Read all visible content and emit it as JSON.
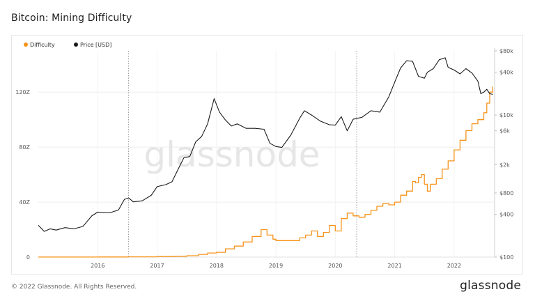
{
  "page": {
    "title": "Bitcoin: Mining Difficulty",
    "footer": "© 2022 Glassnode. All Rights Reserved.",
    "brand": "glassnode",
    "watermark": "glassnode"
  },
  "chart_data": {
    "type": "line",
    "title": "Bitcoin: Mining Difficulty",
    "xlabel": "",
    "ylabel_left": "",
    "ylabel_right": "",
    "legend_position": "top-left",
    "grid": true,
    "x_range": [
      2015.0,
      2022.67
    ],
    "x_ticks": [
      {
        "value": 2016,
        "label": "2016"
      },
      {
        "value": 2017,
        "label": "2017"
      },
      {
        "value": 2018,
        "label": "2018"
      },
      {
        "value": 2019,
        "label": "2019"
      },
      {
        "value": 2020,
        "label": "2020"
      },
      {
        "value": 2021,
        "label": "2021"
      },
      {
        "value": 2022,
        "label": "2022"
      }
    ],
    "left_axis": {
      "scale": "linear",
      "range": [
        0,
        150
      ],
      "ticks": [
        {
          "value": 0,
          "label": "0"
        },
        {
          "value": 40,
          "label": "40Z"
        },
        {
          "value": 80,
          "label": "80Z"
        },
        {
          "value": 120,
          "label": "120Z"
        }
      ]
    },
    "right_axis": {
      "scale": "log",
      "range": [
        100,
        80000
      ],
      "ticks": [
        {
          "value": 100,
          "label": "$100"
        },
        {
          "value": 400,
          "label": "$400"
        },
        {
          "value": 800,
          "label": "$800"
        },
        {
          "value": 2000,
          "label": "$2k"
        },
        {
          "value": 6000,
          "label": "$6k"
        },
        {
          "value": 10000,
          "label": "$10k"
        },
        {
          "value": 40000,
          "label": "$40k"
        },
        {
          "value": 80000,
          "label": "$80k"
        }
      ]
    },
    "vertical_markers": [
      2016.52,
      2020.36
    ],
    "series": [
      {
        "name": "Difficulty",
        "color": "#f7931a",
        "axis": "left",
        "step": true,
        "x": [
          2015.0,
          2015.5,
          2016.0,
          2016.5,
          2017.0,
          2017.3,
          2017.5,
          2017.7,
          2017.85,
          2018.0,
          2018.15,
          2018.3,
          2018.45,
          2018.6,
          2018.75,
          2018.85,
          2018.95,
          2019.0,
          2019.2,
          2019.4,
          2019.5,
          2019.6,
          2019.7,
          2019.8,
          2019.9,
          2020.0,
          2020.1,
          2020.2,
          2020.3,
          2020.4,
          2020.5,
          2020.6,
          2020.7,
          2020.8,
          2020.9,
          2021.0,
          2021.1,
          2021.2,
          2021.3,
          2021.35,
          2021.4,
          2021.45,
          2021.5,
          2021.55,
          2021.6,
          2021.7,
          2021.8,
          2021.9,
          2022.0,
          2022.1,
          2022.2,
          2022.3,
          2022.4,
          2022.5,
          2022.55,
          2022.6,
          2022.65
        ],
        "values": [
          0.05,
          0.06,
          0.1,
          0.2,
          0.4,
          0.6,
          1.0,
          2.0,
          3.0,
          3.5,
          6,
          8,
          11,
          15,
          20,
          16,
          13,
          12,
          12,
          14,
          16,
          19,
          15,
          18,
          23,
          19,
          28,
          32,
          30,
          29,
          31,
          34,
          37,
          39,
          38,
          40,
          45,
          48,
          55,
          54,
          58,
          60,
          53,
          48,
          53,
          57,
          64,
          70,
          78,
          85,
          92,
          97,
          100,
          105,
          112,
          120,
          124
        ]
      },
      {
        "name": "Price [USD]",
        "color": "#1a1a1a",
        "axis": "right",
        "step": false,
        "x": [
          2015.0,
          2015.1,
          2015.2,
          2015.3,
          2015.45,
          2015.6,
          2015.75,
          2015.9,
          2016.0,
          2016.2,
          2016.35,
          2016.45,
          2016.52,
          2016.6,
          2016.75,
          2016.9,
          2017.0,
          2017.15,
          2017.25,
          2017.35,
          2017.45,
          2017.55,
          2017.65,
          2017.75,
          2017.85,
          2017.96,
          2018.05,
          2018.15,
          2018.25,
          2018.35,
          2018.5,
          2018.65,
          2018.8,
          2018.9,
          2019.0,
          2019.1,
          2019.25,
          2019.4,
          2019.48,
          2019.6,
          2019.75,
          2019.9,
          2020.0,
          2020.1,
          2020.2,
          2020.3,
          2020.45,
          2020.6,
          2020.75,
          2020.9,
          2021.0,
          2021.1,
          2021.2,
          2021.3,
          2021.4,
          2021.5,
          2021.55,
          2021.65,
          2021.75,
          2021.85,
          2021.9,
          2022.0,
          2022.1,
          2022.2,
          2022.3,
          2022.4,
          2022.45,
          2022.5,
          2022.55,
          2022.6,
          2022.65
        ],
        "values": [
          280,
          230,
          250,
          240,
          260,
          250,
          270,
          380,
          430,
          420,
          460,
          650,
          680,
          600,
          620,
          740,
          980,
          1050,
          1150,
          1700,
          2500,
          2600,
          4200,
          5000,
          7500,
          17000,
          11000,
          8500,
          7000,
          7500,
          6500,
          6500,
          6300,
          4000,
          3600,
          3500,
          5200,
          9000,
          11500,
          10000,
          8200,
          7300,
          7200,
          9500,
          6000,
          8700,
          9300,
          11500,
          11000,
          18000,
          29000,
          46000,
          58000,
          57000,
          35000,
          33000,
          40000,
          45000,
          60000,
          64000,
          47000,
          43000,
          38000,
          45000,
          39000,
          30000,
          20000,
          21000,
          23000,
          20000,
          19500
        ]
      }
    ]
  }
}
